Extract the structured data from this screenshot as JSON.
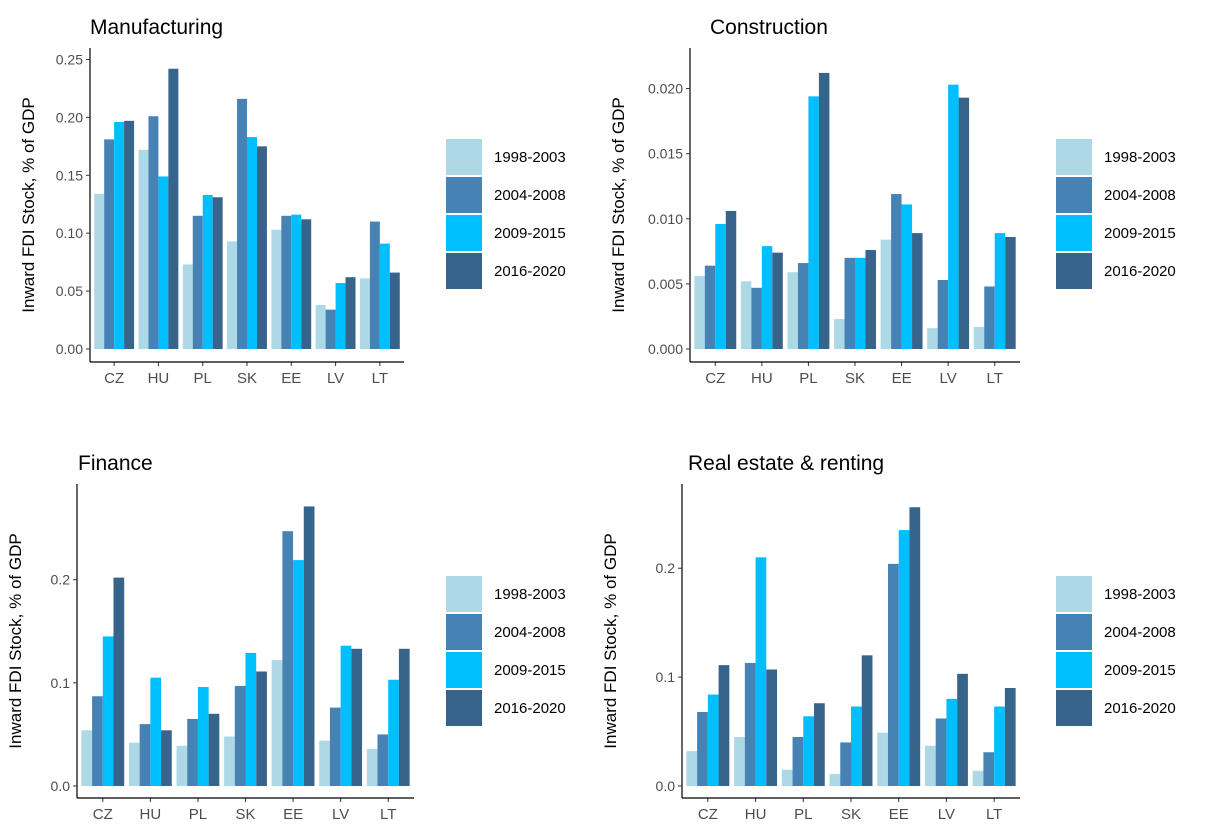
{
  "chart_data": [
    {
      "type": "bar",
      "title": "Manufacturing",
      "ylabel": "Inward FDI Stock, % of GDP",
      "xlabel": "",
      "categories": [
        "CZ",
        "HU",
        "PL",
        "SK",
        "EE",
        "LV",
        "LT"
      ],
      "ylim": [
        0,
        0.253
      ],
      "yticks": [
        0,
        0.05,
        0.1,
        0.15,
        0.2,
        0.25
      ],
      "ytick_labels": [
        "0.00",
        "0.05",
        "0.10",
        "0.15",
        "0.20",
        "0.25"
      ],
      "series": [
        {
          "name": "1998-2003",
          "values": [
            0.134,
            0.172,
            0.073,
            0.093,
            0.103,
            0.038,
            0.061
          ]
        },
        {
          "name": "2004-2008",
          "values": [
            0.181,
            0.201,
            0.115,
            0.216,
            0.115,
            0.034,
            0.11
          ]
        },
        {
          "name": "2009-2015",
          "values": [
            0.196,
            0.149,
            0.133,
            0.183,
            0.116,
            0.057,
            0.091
          ]
        },
        {
          "name": "2016-2020",
          "values": [
            0.197,
            0.242,
            0.131,
            0.175,
            0.112,
            0.062,
            0.066
          ]
        }
      ],
      "legend_position": "right",
      "grid": false
    },
    {
      "type": "bar",
      "title": "Construction",
      "ylabel": "Inward FDI Stock, % of GDP",
      "xlabel": "",
      "categories": [
        "CZ",
        "HU",
        "PL",
        "SK",
        "EE",
        "LV",
        "LT"
      ],
      "ylim": [
        0,
        0.0225
      ],
      "yticks": [
        0,
        0.005,
        0.01,
        0.015,
        0.02
      ],
      "ytick_labels": [
        "0.000",
        "0.005",
        "0.010",
        "0.015",
        "0.020"
      ],
      "series": [
        {
          "name": "1998-2003",
          "values": [
            0.0056,
            0.0052,
            0.0059,
            0.0023,
            0.0084,
            0.0016,
            0.0017
          ]
        },
        {
          "name": "2004-2008",
          "values": [
            0.0064,
            0.0047,
            0.0066,
            0.007,
            0.0119,
            0.0053,
            0.0048
          ]
        },
        {
          "name": "2009-2015",
          "values": [
            0.0096,
            0.0079,
            0.0194,
            0.007,
            0.0111,
            0.0203,
            0.0089
          ]
        },
        {
          "name": "2016-2020",
          "values": [
            0.0106,
            0.0074,
            0.0212,
            0.0076,
            0.0089,
            0.0193,
            0.0086
          ]
        }
      ],
      "legend_position": "right",
      "grid": false
    },
    {
      "type": "bar",
      "title": "Finance",
      "ylabel": "Inward FDI Stock, % of GDP",
      "xlabel": "",
      "categories": [
        "CZ",
        "HU",
        "PL",
        "SK",
        "EE",
        "LV",
        "LT"
      ],
      "ylim": [
        0,
        0.285
      ],
      "yticks": [
        0,
        0.1,
        0.2
      ],
      "ytick_labels": [
        "0.0",
        "0.1",
        "0.2"
      ],
      "series": [
        {
          "name": "1998-2003",
          "values": [
            0.054,
            0.042,
            0.039,
            0.048,
            0.122,
            0.044,
            0.036
          ]
        },
        {
          "name": "2004-2008",
          "values": [
            0.087,
            0.06,
            0.065,
            0.097,
            0.247,
            0.076,
            0.05
          ]
        },
        {
          "name": "2009-2015",
          "values": [
            0.145,
            0.105,
            0.096,
            0.129,
            0.219,
            0.136,
            0.103
          ]
        },
        {
          "name": "2016-2020",
          "values": [
            0.202,
            0.054,
            0.07,
            0.111,
            0.271,
            0.133,
            0.133
          ]
        }
      ],
      "legend_position": "right",
      "grid": false
    },
    {
      "type": "bar",
      "title": "Real estate & renting",
      "ylabel": "Inward FDI Stock, % of GDP",
      "xlabel": "",
      "categories": [
        "CZ",
        "HU",
        "PL",
        "SK",
        "EE",
        "LV",
        "LT"
      ],
      "ylim": [
        0,
        0.27
      ],
      "yticks": [
        0,
        0.1,
        0.2
      ],
      "ytick_labels": [
        "0.0",
        "0.1",
        "0.2"
      ],
      "series": [
        {
          "name": "1998-2003",
          "values": [
            0.032,
            0.045,
            0.015,
            0.011,
            0.049,
            0.037,
            0.014
          ]
        },
        {
          "name": "2004-2008",
          "values": [
            0.068,
            0.113,
            0.045,
            0.04,
            0.204,
            0.062,
            0.031
          ]
        },
        {
          "name": "2009-2015",
          "values": [
            0.084,
            0.21,
            0.064,
            0.073,
            0.235,
            0.08,
            0.073
          ]
        },
        {
          "name": "2016-2020",
          "values": [
            0.111,
            0.107,
            0.076,
            0.12,
            0.256,
            0.103,
            0.09
          ]
        }
      ],
      "legend_position": "right",
      "grid": false
    }
  ],
  "colors": [
    "#add8e6",
    "#4682b4",
    "#00bfff",
    "#36648b"
  ]
}
